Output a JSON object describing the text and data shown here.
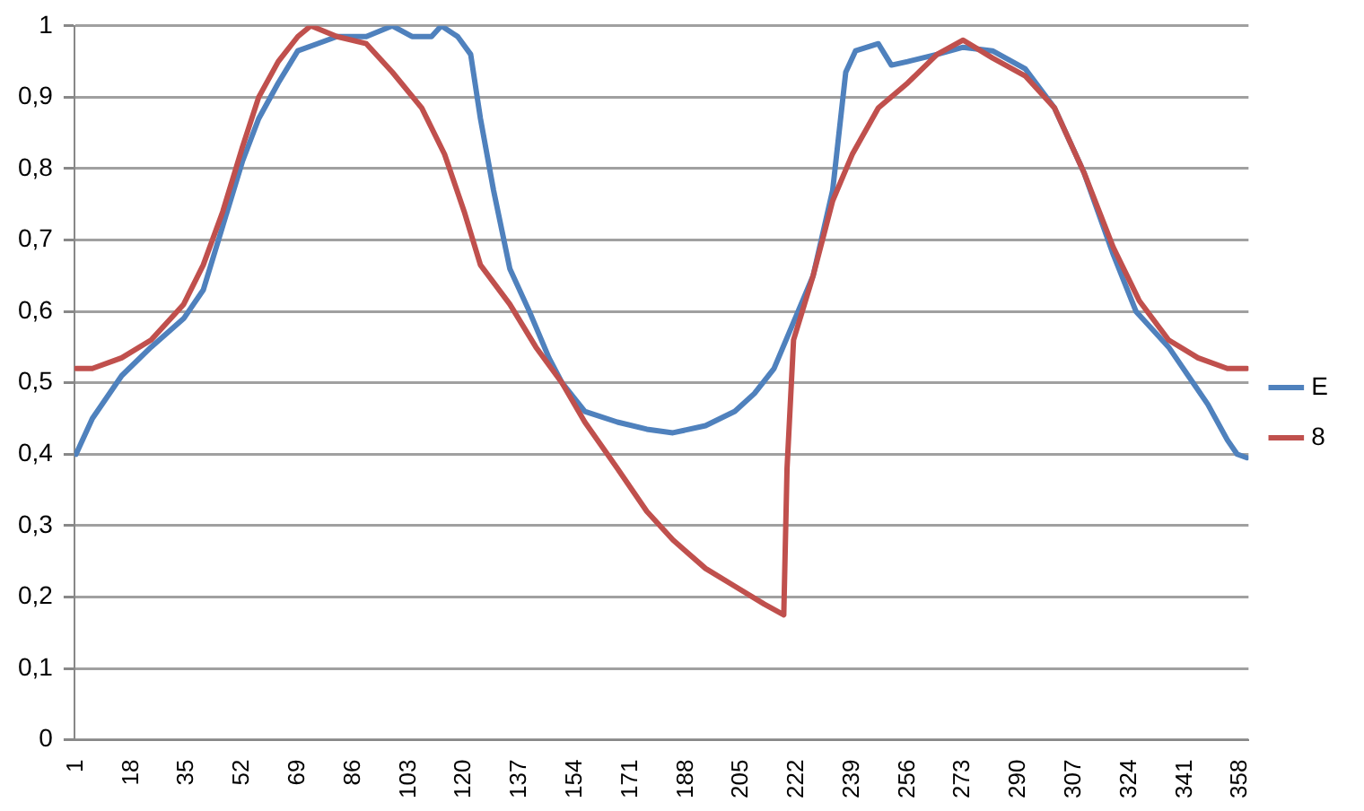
{
  "chart_data": {
    "type": "line",
    "xlim": [
      0.5,
      360.5
    ],
    "xticks": [
      1,
      18,
      35,
      52,
      69,
      86,
      103,
      120,
      137,
      154,
      171,
      188,
      205,
      222,
      239,
      256,
      273,
      290,
      307,
      324,
      341,
      358
    ],
    "ylim": [
      0,
      1
    ],
    "yticks": [
      0,
      {
        "value": 0.1,
        "label": "0,1"
      },
      {
        "value": 0.2,
        "label": "0,2"
      },
      {
        "value": 0.3,
        "label": "0,3"
      },
      {
        "value": 0.4,
        "label": "0,4"
      },
      {
        "value": 0.5,
        "label": "0,5"
      },
      {
        "value": 0.6,
        "label": "0,6"
      },
      {
        "value": 0.7,
        "label": "0,7"
      },
      {
        "value": 0.8,
        "label": "0,8"
      },
      {
        "value": 0.9,
        "label": "0,9"
      },
      1
    ],
    "grid": "y",
    "legend": "right",
    "marker": "none",
    "line_style": "solid",
    "series": [
      {
        "name": "E",
        "color": "#4f81bd",
        "x": [
          1,
          6,
          15,
          24,
          34,
          40,
          46,
          52,
          57,
          63,
          69,
          75,
          81,
          90,
          98,
          104,
          110,
          113,
          118,
          122,
          125,
          129,
          134,
          140,
          146,
          150,
          157,
          167,
          176,
          184,
          194,
          203,
          209,
          215,
          221,
          227,
          233,
          237,
          240,
          247,
          251,
          256,
          265,
          273,
          282,
          292,
          301,
          310,
          319,
          326,
          336,
          342,
          348,
          354,
          357,
          360
        ],
        "values": [
          0.4,
          0.45,
          0.51,
          0.55,
          0.59,
          0.63,
          0.72,
          0.81,
          0.87,
          0.92,
          0.965,
          0.975,
          0.985,
          0.985,
          1.0,
          0.985,
          0.985,
          1.0,
          0.985,
          0.96,
          0.87,
          0.77,
          0.66,
          0.6,
          0.535,
          0.5,
          0.46,
          0.445,
          0.435,
          0.43,
          0.44,
          0.46,
          0.485,
          0.52,
          0.585,
          0.65,
          0.77,
          0.935,
          0.965,
          0.975,
          0.945,
          0.95,
          0.96,
          0.97,
          0.965,
          0.94,
          0.885,
          0.795,
          0.68,
          0.6,
          0.55,
          0.51,
          0.47,
          0.42,
          0.4,
          0.395
        ]
      },
      {
        "name": "8",
        "color": "#c0504d",
        "x": [
          1,
          6,
          15,
          24,
          34,
          40,
          46,
          52,
          57,
          63,
          69,
          73,
          81,
          90,
          98,
          107,
          114,
          120,
          125,
          134,
          142,
          150,
          157,
          167,
          176,
          184,
          194,
          203,
          212,
          218,
          219,
          221,
          227,
          233,
          239,
          247,
          256,
          265,
          273,
          282,
          292,
          301,
          310,
          319,
          327,
          336,
          345,
          354,
          360
        ],
        "values": [
          0.52,
          0.52,
          0.535,
          0.56,
          0.61,
          0.665,
          0.74,
          0.83,
          0.9,
          0.95,
          0.985,
          1.0,
          0.985,
          0.975,
          0.935,
          0.885,
          0.82,
          0.74,
          0.665,
          0.61,
          0.55,
          0.5,
          0.445,
          0.38,
          0.32,
          0.28,
          0.24,
          0.215,
          0.19,
          0.175,
          0.38,
          0.56,
          0.65,
          0.755,
          0.82,
          0.885,
          0.92,
          0.96,
          0.98,
          0.955,
          0.93,
          0.885,
          0.795,
          0.69,
          0.615,
          0.56,
          0.535,
          0.52,
          0.52
        ]
      }
    ]
  }
}
